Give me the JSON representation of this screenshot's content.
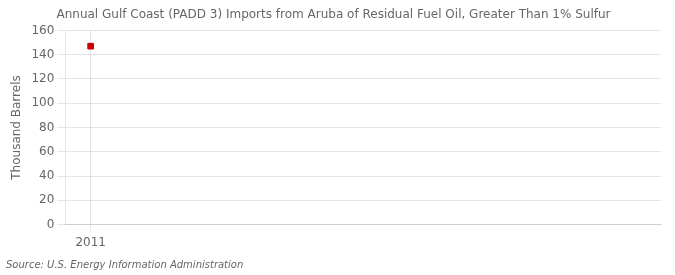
{
  "chart_data": {
    "type": "scatter",
    "title": "Annual Gulf Coast (PADD 3) Imports from Aruba of Residual Fuel Oil, Greater Than 1% Sulfur",
    "ylabel": "Thousand Barrels",
    "annotations": [
      "Source: U.S. Energy Information Administration"
    ],
    "x": [
      2011
    ],
    "values": [
      147
    ],
    "color": "#cc0000",
    "marker": "square",
    "xlim": [
      2010.6,
      2020.0
    ],
    "xticks": [
      2011
    ],
    "ylim": [
      0,
      160
    ],
    "yticks": [
      0,
      20,
      40,
      60,
      80,
      100,
      120,
      140,
      160
    ],
    "grid": true
  }
}
